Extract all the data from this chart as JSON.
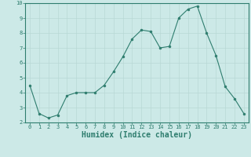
{
  "x": [
    0,
    1,
    2,
    3,
    4,
    5,
    6,
    7,
    8,
    9,
    10,
    11,
    12,
    13,
    14,
    15,
    16,
    17,
    18,
    19,
    20,
    21,
    22,
    23
  ],
  "y": [
    4.5,
    2.6,
    2.3,
    2.5,
    3.8,
    4.0,
    4.0,
    4.0,
    4.5,
    5.4,
    6.4,
    7.6,
    8.2,
    8.1,
    7.0,
    7.1,
    9.0,
    9.6,
    9.8,
    8.0,
    6.5,
    4.4,
    3.6,
    2.6
  ],
  "xlabel": "Humidex (Indice chaleur)",
  "xlim": [
    -0.5,
    23.5
  ],
  "ylim": [
    2,
    10
  ],
  "yticks": [
    2,
    3,
    4,
    5,
    6,
    7,
    8,
    9,
    10
  ],
  "xticks": [
    0,
    1,
    2,
    3,
    4,
    5,
    6,
    7,
    8,
    9,
    10,
    11,
    12,
    13,
    14,
    15,
    16,
    17,
    18,
    19,
    20,
    21,
    22,
    23
  ],
  "line_color": "#2e7d6e",
  "marker_color": "#2e7d6e",
  "bg_color": "#cce9e7",
  "grid_color": "#b8d8d5",
  "axes_color": "#2e7d6e",
  "tick_label_fontsize": 5.0,
  "xlabel_fontsize": 7.0,
  "label_color": "#2e7d6e"
}
